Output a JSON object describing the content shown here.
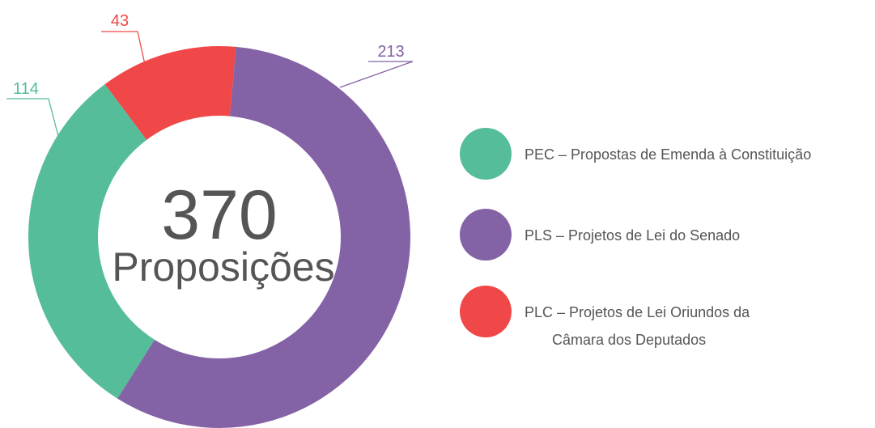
{
  "chart_data": {
    "type": "donut",
    "categories": [
      [
        "PEC – Propostas de Emenda à Constituição"
      ],
      [
        "PLS – Projetos de Lei do Senado"
      ],
      [
        "PLC – Projetos de Lei Oriundos da",
        "Câmara dos Deputados"
      ]
    ],
    "values": [
      114,
      213,
      43
    ],
    "colors": [
      "#55bd9a",
      "#8462a6",
      "#f04848"
    ],
    "total": 370,
    "center_label": "Proposições"
  }
}
